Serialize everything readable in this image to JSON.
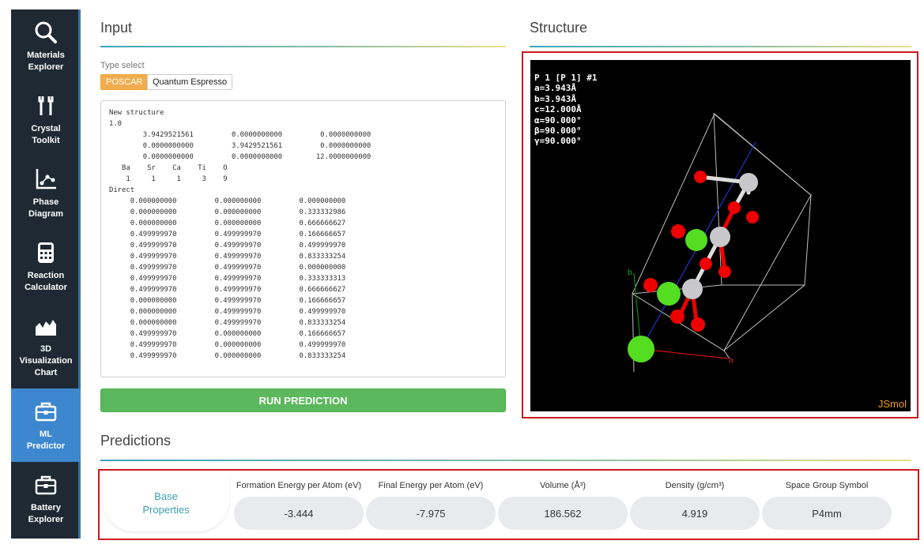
{
  "sidebar": {
    "items": [
      {
        "label": "Materials\nExplorer",
        "icon": "magnifier-icon",
        "active": false
      },
      {
        "label": "Crystal\nToolkit",
        "icon": "tools-icon",
        "active": false
      },
      {
        "label": "Phase\nDiagram",
        "icon": "phase-diagram-icon",
        "active": false
      },
      {
        "label": "Reaction\nCalculator",
        "icon": "calculator-icon",
        "active": false
      },
      {
        "label": "3D\nVisualization\nChart",
        "icon": "surface-chart-icon",
        "active": false
      },
      {
        "label": "ML\nPredictor",
        "icon": "toolbox-icon",
        "active": true
      },
      {
        "label": "Battery\nExplorer",
        "icon": "toolbox-icon",
        "active": false
      }
    ]
  },
  "input": {
    "title": "Input",
    "type_select_label": "Type select",
    "types": [
      "POSCAR",
      "Quantum Espresso"
    ],
    "selected_type": "POSCAR",
    "poscar_text": "New structure\n1.0\n        3.9429521561         0.0000000000         0.0000000000\n        0.0000000000         3.9429521561         0.0000000000\n        0.0000000000         0.0000000000        12.0000000000\n   Ba    Sr    Ca    Ti    O\n    1     1     1     3    9\nDirect\n     0.000000000         0.000000000         0.000000000\n     0.000000000         0.000000000         0.333332986\n     0.000000000         0.000000000         0.666666627\n     0.499999970         0.499999970         0.166666657\n     0.499999970         0.499999970         0.499999970\n     0.499999970         0.499999970         0.833333254\n     0.499999970         0.499999970         0.000000000\n     0.499999970         0.499999970         0.333333313\n     0.499999970         0.499999970         0.666666627\n     0.000000000         0.499999970         0.166666657\n     0.000000000         0.499999970         0.499999970\n     0.000000000         0.499999970         0.833333254\n     0.499999970         0.000000000         0.166666657\n     0.499999970         0.000000000         0.499999970\n     0.499999970         0.000000000         0.833333254",
    "run_button": "RUN PREDICTION"
  },
  "structure": {
    "title": "Structure",
    "info": "P 1 [P 1] #1\na=3.943Å\nb=3.943Å\nc=12.000Å\nα=90.000°\nβ=90.000°\nγ=90.000°",
    "axis_a": "a",
    "axis_b": "b",
    "viewer_logo": "JSmol",
    "colors": {
      "cation_large": "#55dd22",
      "ti": "#c8c8cc",
      "oxygen": "#ee0000",
      "bond_o": "#ee0000"
    }
  },
  "predictions": {
    "title": "Predictions",
    "base_label": "Base\nProperties",
    "properties": [
      {
        "name": "Formation Energy per Atom (eV)",
        "value": "-3.444"
      },
      {
        "name": "Final Energy per Atom (eV)",
        "value": "-7.975"
      },
      {
        "name": "Volume (Å³)",
        "value": "186.562"
      },
      {
        "name": "Density (g/cm³)",
        "value": "4.919"
      },
      {
        "name": "Space Group Symbol",
        "value": "P4mm"
      }
    ]
  }
}
